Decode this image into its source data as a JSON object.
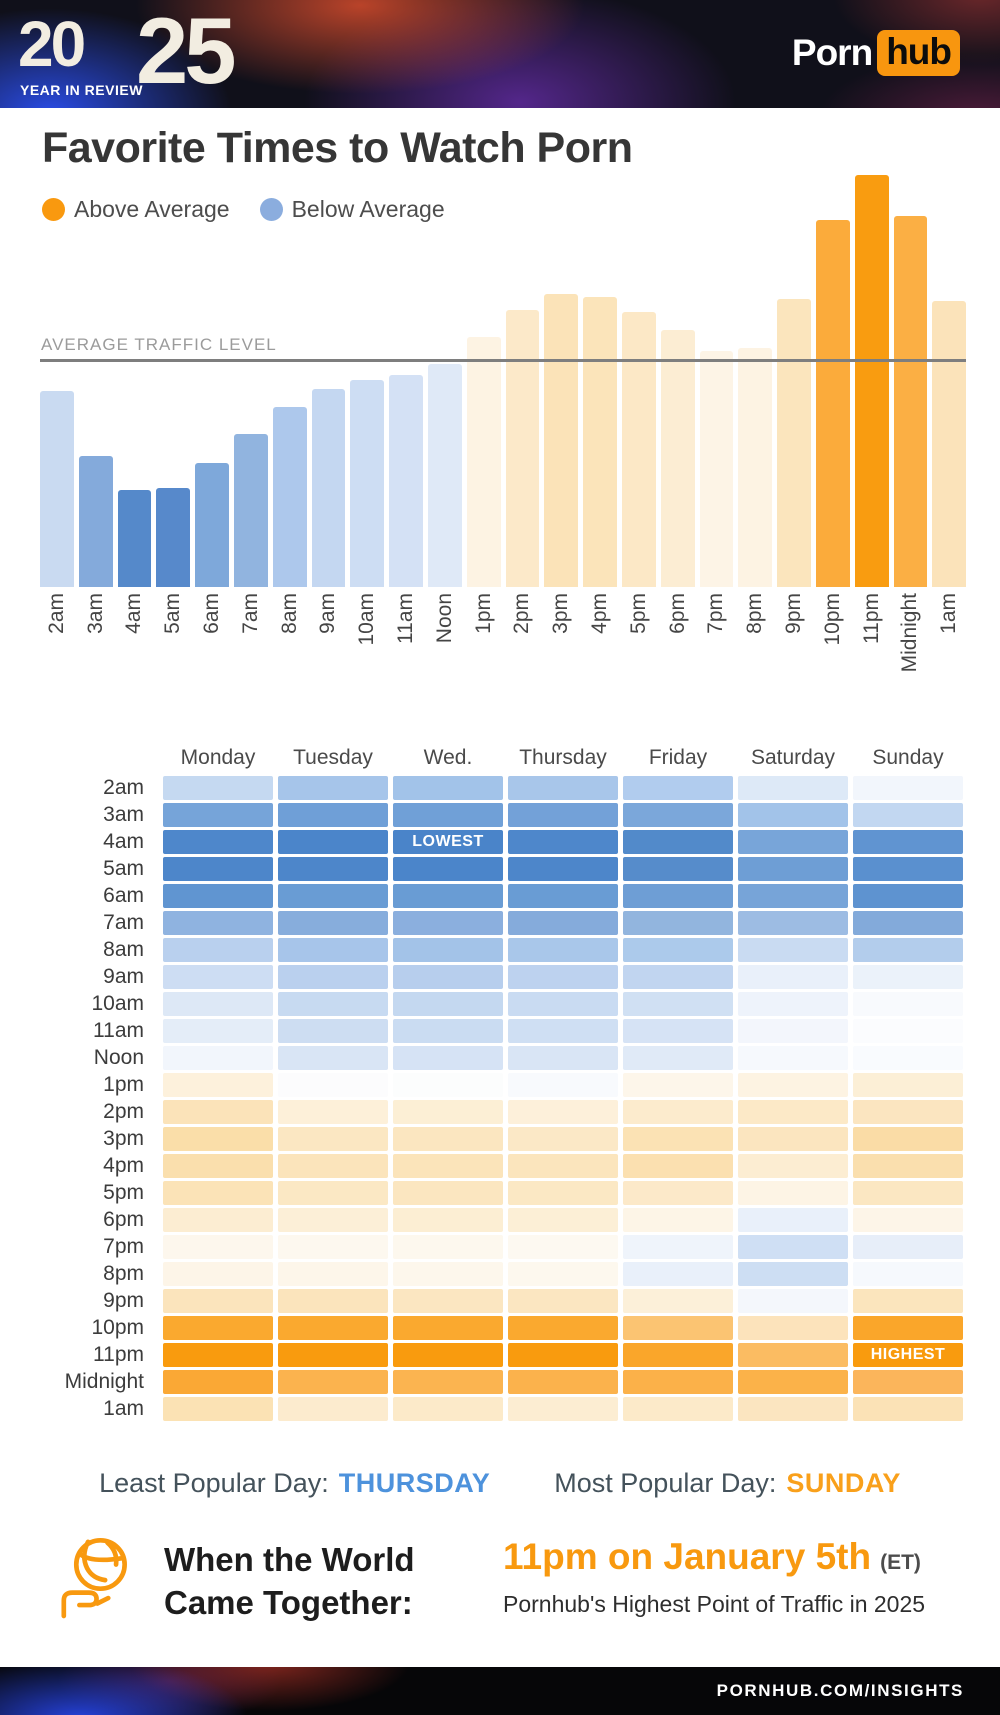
{
  "header": {
    "year_logo_20": "20",
    "year_logo_25": "25",
    "year_logo_sub": "YEAR IN REVIEW",
    "brand": {
      "part1": "Porn",
      "part2": "hub",
      "badge_color": "#f8960f"
    }
  },
  "title": "Favorite Times to Watch Porn",
  "legend": {
    "above": {
      "label": "Above Average",
      "color": "#f9990f"
    },
    "below": {
      "label": "Below Average",
      "color": "#8badde"
    }
  },
  "average_line_label": "AVERAGE TRAFFIC LEVEL",
  "chart_data": [
    {
      "type": "bar",
      "title": "Hourly traffic relative to average traffic level",
      "categories": [
        "2am",
        "3am",
        "4am",
        "5am",
        "6am",
        "7am",
        "8am",
        "9am",
        "10am",
        "11am",
        "Noon",
        "1pm",
        "2pm",
        "3pm",
        "4pm",
        "5pm",
        "6pm",
        "7pm",
        "8pm",
        "9pm",
        "10pm",
        "11pm",
        "Midnight",
        "1am"
      ],
      "values": [
        87,
        58,
        43,
        44,
        55,
        68,
        80,
        88,
        92,
        94,
        99,
        111,
        123,
        130,
        129,
        122,
        114,
        105,
        106,
        128,
        163,
        183,
        165,
        127
      ],
      "unit": "percent_of_average_traffic",
      "baseline": 100,
      "baseline_label": "AVERAGE TRAFFIC LEVEL",
      "colors": [
        "#c9daf1",
        "#84aadb",
        "#5589ca",
        "#5789cb",
        "#7ea8da",
        "#91b4df",
        "#adc8ec",
        "#c4d7f1",
        "#cdddf3",
        "#d4e1f5",
        "#dfe9f7",
        "#fdf3e3",
        "#fce9c9",
        "#fbe3b8",
        "#fbe4ba",
        "#fce8c6",
        "#fcedd3",
        "#fdf4e6",
        "#fdf3e3",
        "#fbe5bd",
        "#fbab3b",
        "#f99c10",
        "#fbaf44",
        "#fbe3ba"
      ]
    },
    {
      "type": "heatmap",
      "title": "Traffic by day of week and hour",
      "columns": [
        "Monday",
        "Tuesday",
        "Wed.",
        "Thursday",
        "Friday",
        "Saturday",
        "Sunday"
      ],
      "rows": [
        "2am",
        "3am",
        "4am",
        "5am",
        "6am",
        "7am",
        "8am",
        "9am",
        "10am",
        "11am",
        "Noon",
        "1pm",
        "2pm",
        "3pm",
        "4pm",
        "5pm",
        "6pm",
        "7pm",
        "8pm",
        "9pm",
        "10pm",
        "11pm",
        "Midnight",
        "1am"
      ],
      "colors": [
        [
          "#c5d9f1",
          "#a6c5ea",
          "#a2c3e9",
          "#a8c6ea",
          "#b1ccee",
          "#dde9f7",
          "#f2f6fc"
        ],
        [
          "#76a4d9",
          "#6f9fd7",
          "#70a0d7",
          "#73a1d8",
          "#7ba7da",
          "#a2c3e9",
          "#c2d7f1"
        ],
        [
          "#4e87cb",
          "#4b85ca",
          "#4a84c9",
          "#4e87cb",
          "#528aca",
          "#78a5d9",
          "#6094d1"
        ],
        [
          "#4d86ca",
          "#4d86ca",
          "#4b85ca",
          "#4d86ca",
          "#568ccb",
          "#6e9ed5",
          "#5a90cf"
        ],
        [
          "#6095d1",
          "#699cd4",
          "#699cd4",
          "#699cd4",
          "#6e9ed5",
          "#77a4d8",
          "#5e93d0"
        ],
        [
          "#8fb3e0",
          "#87addc",
          "#8bafde",
          "#85abdb",
          "#92b5de",
          "#9dbce3",
          "#83aada"
        ],
        [
          "#b9d0ee",
          "#a7c5ea",
          "#a3c3e8",
          "#a9c7ea",
          "#accaeb",
          "#c9dbf2",
          "#b3cdec"
        ],
        [
          "#cdddf3",
          "#bad0ee",
          "#b7ceed",
          "#bdd2ef",
          "#c1d5f0",
          "#e9f0fa",
          "#ebf2fa"
        ],
        [
          "#dde8f6",
          "#c7daf1",
          "#c4d8f0",
          "#c9dbf2",
          "#d0e0f3",
          "#eef3fb",
          "#f8fafd"
        ],
        [
          "#e4edf8",
          "#cdddf2",
          "#cadcf2",
          "#cfdff3",
          "#d6e3f5",
          "#f3f6fc",
          "#fbfcfe"
        ],
        [
          "#f2f6fc",
          "#d9e5f5",
          "#d6e3f5",
          "#d9e5f5",
          "#e0eaf7",
          "#f6f9fd",
          "#f9fbfe"
        ],
        [
          "#fdf1dc",
          "#fcfcfd",
          "#fcfdfd",
          "#f8fafd",
          "#fdf6ea",
          "#fdf3e2",
          "#fcefd6"
        ],
        [
          "#fbe3b9",
          "#fdf0d9",
          "#fcefd5",
          "#fdf0da",
          "#fcebcd",
          "#fce9c7",
          "#fbe5c0"
        ],
        [
          "#fadea9",
          "#fbe7c2",
          "#fbe6c0",
          "#fbe8c6",
          "#fbe2b4",
          "#fbe5bf",
          "#fadca6"
        ],
        [
          "#fadfad",
          "#fbe4bb",
          "#fbe4ba",
          "#fbe5bd",
          "#fbe0b0",
          "#fcedd2",
          "#fadfae"
        ],
        [
          "#fbe3b7",
          "#fbe8c4",
          "#fbe6c0",
          "#fbe8c4",
          "#fce9c9",
          "#fdf4e5",
          "#fbe7c2"
        ],
        [
          "#fcedd2",
          "#fcefd7",
          "#fceed3",
          "#fcefd6",
          "#fdf5e7",
          "#e9f0fa",
          "#fdf5e8"
        ],
        [
          "#fdf7ed",
          "#fdf8ef",
          "#fdf8ee",
          "#fdf9f1",
          "#eff4fb",
          "#cfdff4",
          "#e7eef9"
        ],
        [
          "#fdf5e8",
          "#fdf6ea",
          "#fdf7ec",
          "#fdf8ee",
          "#e9f0fa",
          "#cddef3",
          "#f6f9fd"
        ],
        [
          "#fbe4bc",
          "#fbe4bc",
          "#fbe6c1",
          "#fbe6c1",
          "#fcf0d9",
          "#f4f7fc",
          "#fbe5bd"
        ],
        [
          "#faa92f",
          "#faa92f",
          "#faa92f",
          "#faa92f",
          "#fbc472",
          "#fce3bb",
          "#faa62a"
        ],
        [
          "#f99b0e",
          "#f99b0e",
          "#f99b0e",
          "#f99b0e",
          "#faa62a",
          "#fbbc62",
          "#f99b0e"
        ],
        [
          "#faa835",
          "#fbb34e",
          "#fbb450",
          "#fbb24c",
          "#fbb149",
          "#fbb249",
          "#fbb55b"
        ],
        [
          "#fbe2b4",
          "#fcebce",
          "#fceac9",
          "#fcedd2",
          "#fceac9",
          "#fbe5c0",
          "#fbe2b6"
        ]
      ],
      "annotations": [
        {
          "row": "4am",
          "column": "Wed.",
          "label": "LOWEST"
        },
        {
          "row": "11pm",
          "column": "Sunday",
          "label": "HIGHEST"
        }
      ]
    }
  ],
  "popular_days": {
    "least_label": "Least Popular Day:",
    "least_value": "THURSDAY",
    "least_color": "#4d92dc",
    "most_label": "Most Popular Day:",
    "most_value": "SUNDAY",
    "most_color": "#f9a01b"
  },
  "world_moment": {
    "icon": "globe-in-hand-icon",
    "icon_color": "#f8990f",
    "heading_line1": "When the World",
    "heading_line2": "Came Together:",
    "highlight": "11pm on January 5th",
    "highlight_color": "#f8990f",
    "timezone": "(ET)",
    "description": "Pornhub's Highest Point of Traffic in 2025"
  },
  "footer": {
    "link": "PORNHUB.COM/INSIGHTS"
  }
}
